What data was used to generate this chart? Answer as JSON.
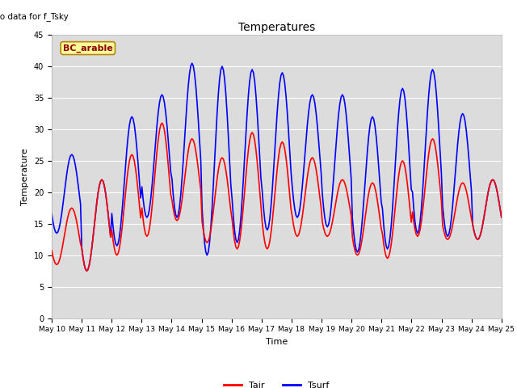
{
  "title": "Temperatures",
  "xlabel": "Time",
  "ylabel": "Temperature",
  "top_left_text": "No data for f_Tsky",
  "annotation_text": "BC_arable",
  "ylim": [
    0,
    45
  ],
  "yticks": [
    0,
    5,
    10,
    15,
    20,
    25,
    30,
    35,
    40,
    45
  ],
  "x_tick_labels": [
    "May 10",
    "May 11",
    "May 12",
    "May 13",
    "May 14",
    "May 15",
    "May 16",
    "May 17",
    "May 18",
    "May 19",
    "May 20",
    "May 21",
    "May 22",
    "May 23",
    "May 24",
    "May 25"
  ],
  "tair_color": "#ff0000",
  "tsurf_color": "#0000ff",
  "background_color": "#dcdcdc",
  "line_width": 1.2,
  "days": 15,
  "daily_min_air": [
    8.5,
    7.5,
    10.0,
    13.0,
    15.5,
    12.0,
    11.0,
    11.0,
    13.0,
    13.0,
    10.0,
    9.5,
    13.0,
    12.5,
    12.5
  ],
  "daily_max_air": [
    17.5,
    22.0,
    26.0,
    31.0,
    28.5,
    25.5,
    29.5,
    28.0,
    25.5,
    22.0,
    21.5,
    25.0,
    28.5,
    21.5,
    22.0
  ],
  "daily_min_surf": [
    13.5,
    7.5,
    11.5,
    16.0,
    16.0,
    10.0,
    12.0,
    14.0,
    16.0,
    14.5,
    10.5,
    11.0,
    13.5,
    13.0,
    12.5
  ],
  "daily_max_surf": [
    26.0,
    22.0,
    32.0,
    35.5,
    40.5,
    40.0,
    39.5,
    39.0,
    35.5,
    35.5,
    32.0,
    36.5,
    39.5,
    32.5,
    22.0
  ]
}
